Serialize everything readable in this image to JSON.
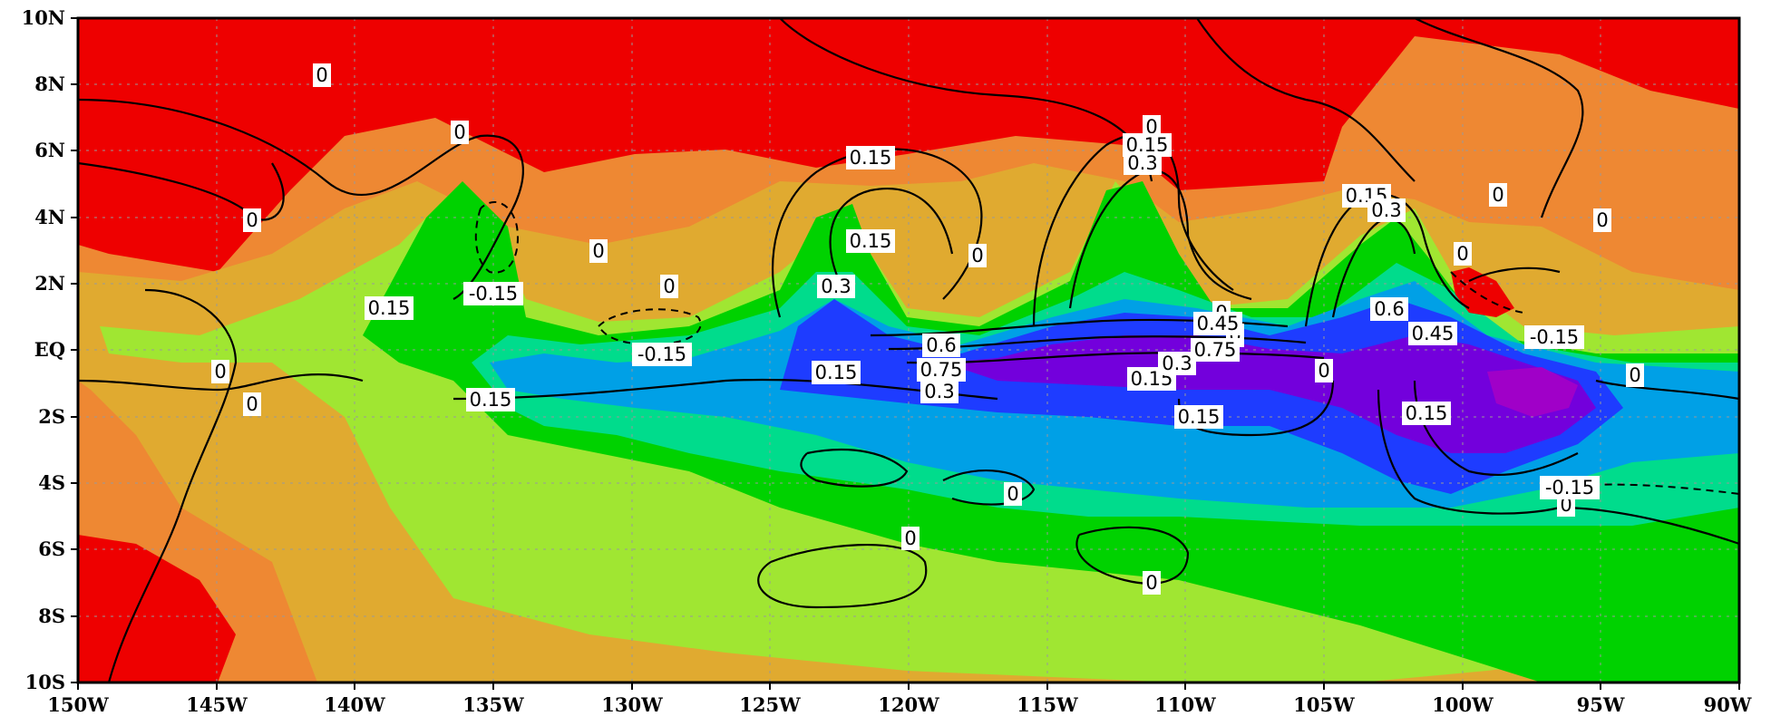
{
  "map": {
    "y_ticks": [
      "10N",
      "8N",
      "6N",
      "4N",
      "2N",
      "EQ",
      "2S",
      "4S",
      "6S",
      "8S",
      "10S"
    ],
    "x_ticks": [
      "150W",
      "145W",
      "140W",
      "135W",
      "130W",
      "125W",
      "120W",
      "115W",
      "110W",
      "105W",
      "100W",
      "95W",
      "90W"
    ],
    "fill_colors": {
      "red": "#ee0000",
      "orange": "#ee8833",
      "light_orange": "#e0aa30",
      "yellow_green": "#a0e632",
      "green": "#00d200",
      "teal": "#00dc8c",
      "sky_blue": "#00a0e6",
      "blue": "#1e3cff",
      "purple": "#7300dc",
      "violet": "#a000c8"
    },
    "contour_labels": [
      "0",
      "0",
      "0",
      "0",
      "0",
      "0",
      "0",
      "0",
      "0",
      "0",
      "0",
      "0",
      "0",
      "0",
      "0",
      "0",
      "0",
      "0",
      "0",
      "0",
      "0.15",
      "0.15",
      "0.15",
      "0.15",
      "0.15",
      "0.15",
      "0.15",
      "0.15",
      "0.15",
      "0.15",
      "0.3",
      "0.3",
      "0.3",
      "0.3",
      "0.3",
      "0.45",
      "0.45",
      "0.6",
      "0.6",
      "0.75",
      "0.75",
      "-0.15",
      "-0.15",
      "-0.15",
      "-0.15"
    ]
  }
}
